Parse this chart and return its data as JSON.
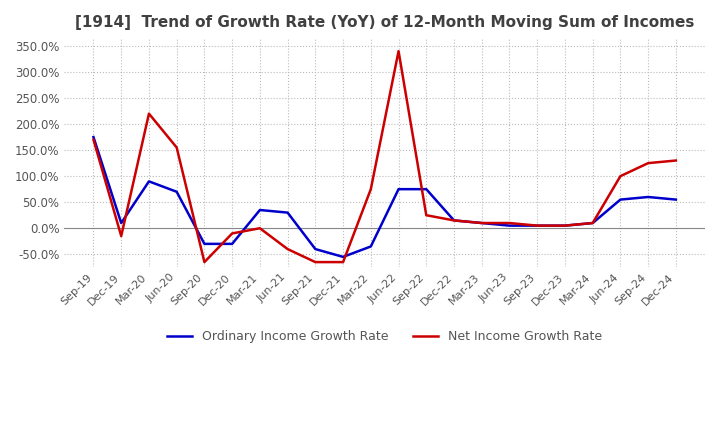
{
  "title": "[1914]  Trend of Growth Rate (YoY) of 12-Month Moving Sum of Incomes",
  "title_color": "#404040",
  "background_color": "#ffffff",
  "grid_color": "#bbbbbb",
  "x_labels": [
    "Sep-19",
    "Dec-19",
    "Mar-20",
    "Jun-20",
    "Sep-20",
    "Dec-20",
    "Mar-21",
    "Jun-21",
    "Sep-21",
    "Dec-21",
    "Mar-22",
    "Jun-22",
    "Sep-22",
    "Dec-22",
    "Mar-23",
    "Jun-23",
    "Sep-23",
    "Dec-23",
    "Mar-24",
    "Jun-24",
    "Sep-24",
    "Dec-24"
  ],
  "ylim": [
    -75,
    365
  ],
  "yticks": [
    -50,
    0,
    50,
    100,
    150,
    200,
    250,
    300,
    350
  ],
  "ordinary_income": [
    175,
    10,
    90,
    70,
    -30,
    -30,
    35,
    30,
    -40,
    -55,
    -35,
    75,
    75,
    15,
    10,
    5,
    5,
    5,
    10,
    55,
    60,
    55
  ],
  "net_income": [
    170,
    -15,
    220,
    155,
    -65,
    -10,
    0,
    -40,
    -65,
    -65,
    75,
    340,
    25,
    15,
    10,
    10,
    5,
    5,
    10,
    100,
    125,
    130
  ],
  "ordinary_color": "#0000cc",
  "net_color": "#cc0000",
  "legend_labels": [
    "Ordinary Income Growth Rate",
    "Net Income Growth Rate"
  ]
}
